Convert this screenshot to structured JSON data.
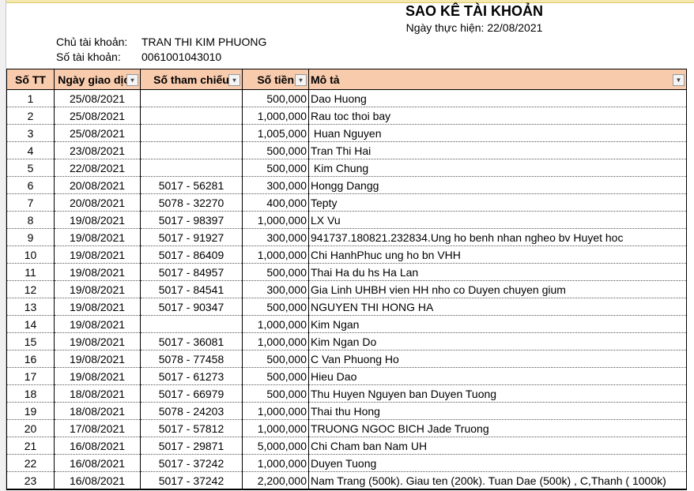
{
  "header": {
    "title": "SAO KÊ TÀI KHOẢN",
    "date_label": "Ngày thực hiện: 22/08/2021",
    "owner_label": "Chủ tài khoản:",
    "owner_value": "TRAN THI KIM PHUONG",
    "account_label": "Số tài khoản:",
    "account_value": "0061001043010"
  },
  "colors": {
    "header_bg": "#f8cbad"
  },
  "columns": [
    "Số TT",
    "Ngày giao dịch",
    "Số tham chiếu",
    "Số tiền",
    "Mô tả"
  ],
  "rows": [
    [
      "1",
      "25/08/2021",
      "",
      "500,000",
      "Dao Huong"
    ],
    [
      "2",
      "25/08/2021",
      "",
      "1,000,000",
      "Rau toc thoi bay"
    ],
    [
      "3",
      "25/08/2021",
      "",
      "1,005,000",
      " Huan Nguyen"
    ],
    [
      "4",
      "23/08/2021",
      "",
      "500,000",
      "Tran Thi Hai"
    ],
    [
      "5",
      "22/08/2021",
      "",
      "500,000",
      " Kim Chung"
    ],
    [
      "6",
      "20/08/2021",
      "5017 - 56281",
      "300,000",
      "Hongg Dangg"
    ],
    [
      "7",
      "20/08/2021",
      "5078 - 32270",
      "400,000",
      "Tepty"
    ],
    [
      "8",
      "19/08/2021",
      "5017 - 98397",
      "1,000,000",
      "LX Vu"
    ],
    [
      "9",
      "19/08/2021",
      "5017 - 91927",
      "300,000",
      "941737.180821.232834.Ung ho benh nhan ngheo bv Huyet hoc"
    ],
    [
      "10",
      "19/08/2021",
      "5017 - 86409",
      "1,000,000",
      "Chi HanhPhuc ung ho bn VHH"
    ],
    [
      "11",
      "19/08/2021",
      "5017 - 84957",
      "500,000",
      "Thai Ha du hs Ha Lan"
    ],
    [
      "12",
      "19/08/2021",
      "5017 - 84541",
      "300,000",
      "Gia Linh UHBH vien HH nho co Duyen chuyen gium"
    ],
    [
      "13",
      "19/08/2021",
      "5017 - 90347",
      "500,000",
      "NGUYEN THI HONG HA"
    ],
    [
      "14",
      "19/08/2021",
      "",
      "1,000,000",
      "Kim Ngan"
    ],
    [
      "15",
      "19/08/2021",
      "5017 - 36081",
      "1,000,000",
      "Kim Ngan Do"
    ],
    [
      "16",
      "19/08/2021",
      "5078 - 77458",
      "500,000",
      "C Van Phuong Ho"
    ],
    [
      "17",
      "19/08/2021",
      "5017 - 61273",
      "500,000",
      "Hieu Dao"
    ],
    [
      "18",
      "18/08/2021",
      "5017 - 66979",
      "500,000",
      "Thu Huyen Nguyen ban Duyen Tuong"
    ],
    [
      "19",
      "18/08/2021",
      "5078 - 24203",
      "1,000,000",
      "Thai thu Hong"
    ],
    [
      "20",
      "17/08/2021",
      "5017 - 57812",
      "1,000,000",
      "TRUONG NGOC BICH Jade Truong"
    ],
    [
      "21",
      "16/08/2021",
      "5017 - 29871",
      "5,000,000",
      "Chi Cham ban Nam UH"
    ],
    [
      "22",
      "16/08/2021",
      "5017 - 37242",
      "1,000,000",
      "Duyen Tuong"
    ],
    [
      "23",
      "16/08/2021",
      "5017 - 37242",
      "2,200,000",
      "Nam Trang (500k). Giau ten (200k). Tuan Dae (500k) , C,Thanh ( 1000k)"
    ]
  ]
}
